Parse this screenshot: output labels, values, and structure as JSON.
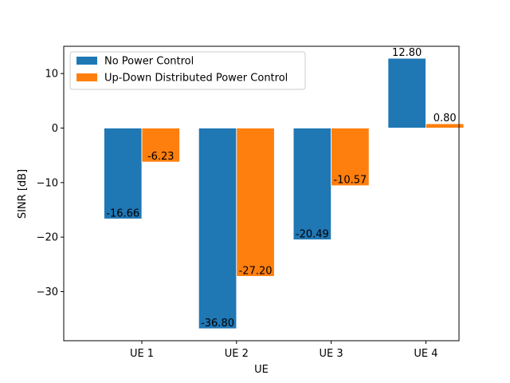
{
  "chart_data": {
    "type": "bar",
    "title": "",
    "xlabel": "UE",
    "ylabel": "SINR [dB]",
    "categories": [
      "UE 1",
      "UE 2",
      "UE 3",
      "UE 4"
    ],
    "ylim": [
      -39,
      15
    ],
    "yticks": [
      -30,
      -20,
      -10,
      0,
      10
    ],
    "ytick_labels": [
      "−30",
      "−20",
      "−10",
      "0",
      "10"
    ],
    "grid": false,
    "legend_position": "top-left",
    "series": [
      {
        "name": "No Power Control",
        "color": "#1f77b4",
        "values": [
          -16.66,
          -36.8,
          -20.49,
          12.8
        ],
        "labels": [
          "-16.66",
          "-36.80",
          "-20.49",
          "12.80"
        ]
      },
      {
        "name": "Up-Down Distributed Power Control",
        "color": "#ff7f0e",
        "values": [
          -6.23,
          -27.2,
          -10.57,
          0.8
        ],
        "labels": [
          "-6.23",
          "-27.20",
          "-10.57",
          "0.80"
        ]
      }
    ]
  }
}
